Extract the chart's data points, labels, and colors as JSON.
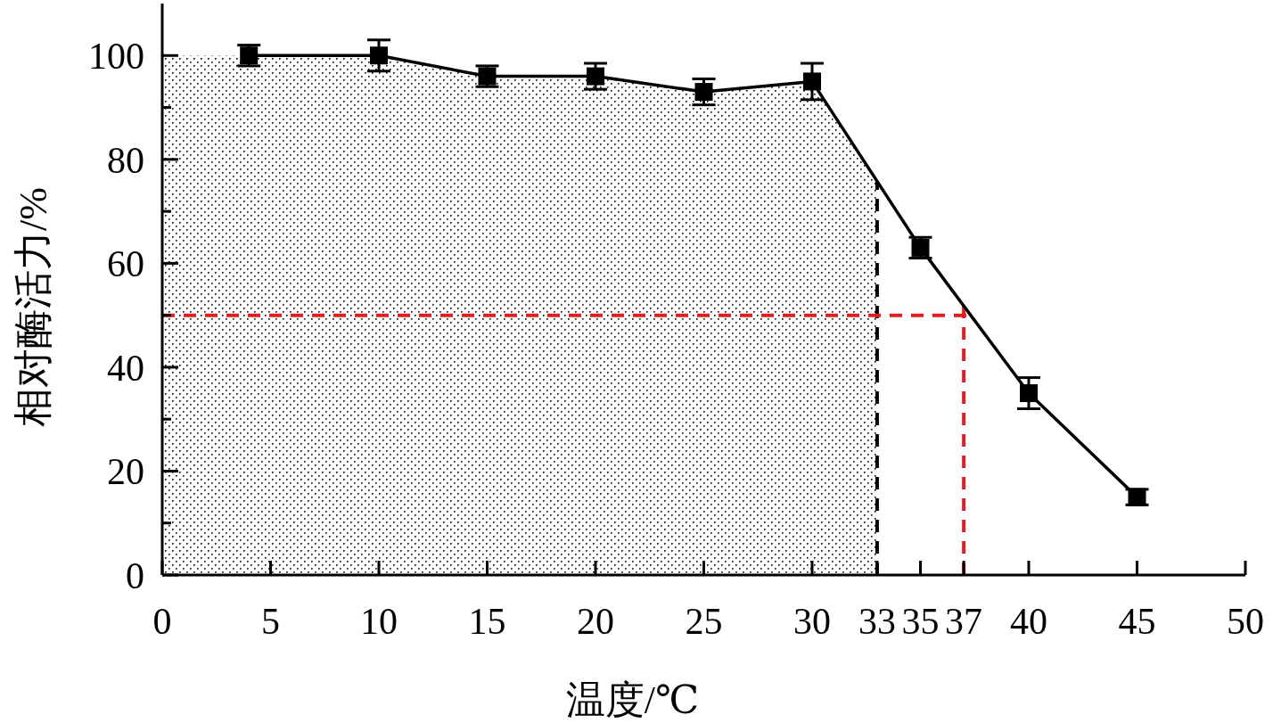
{
  "chart_data": {
    "type": "line",
    "xlabel": "温度/℃",
    "ylabel": "相对酶活力/%",
    "x": [
      4,
      10,
      15,
      20,
      25,
      30,
      35,
      40,
      45
    ],
    "values": [
      100,
      100,
      96,
      96,
      93,
      95,
      63,
      35,
      15
    ],
    "errors": [
      2,
      3,
      2,
      2.5,
      2.5,
      3.5,
      2,
      3,
      1.5
    ],
    "color": "#000000",
    "marker": "square",
    "line_style": "solid",
    "xlim": [
      0,
      50
    ],
    "ylim": [
      0,
      110
    ],
    "xticks": [
      0,
      5,
      10,
      15,
      20,
      25,
      30,
      33,
      35,
      37,
      40,
      45,
      50
    ],
    "yticks": [
      0,
      {
        "value": 10,
        "label": null
      },
      20,
      {
        "value": 30,
        "label": null
      },
      40,
      {
        "value": 50,
        "label": null
      },
      60,
      {
        "value": 70,
        "label": null
      },
      80,
      {
        "value": 90,
        "label": null
      },
      100
    ],
    "ref_lines": [
      {
        "axis": "x",
        "value": 33,
        "color": "#000000",
        "line_style": "dashed"
      },
      {
        "axis": "y",
        "value": 50,
        "color": "#e02020",
        "line_style": "dashed"
      },
      {
        "axis": "x",
        "value": 37,
        "color": "#e02020",
        "line_style": "dashed"
      }
    ],
    "bands": [
      {
        "axis": "x",
        "from": 0,
        "to": 33,
        "color": "#000000"
      }
    ]
  }
}
